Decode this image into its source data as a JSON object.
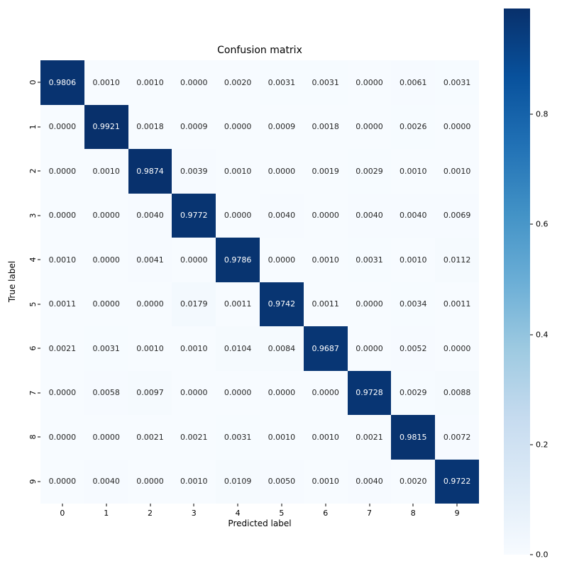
{
  "figure": {
    "background": "#ffffff"
  },
  "chart_data": {
    "type": "heatmap",
    "title": "Confusion matrix",
    "xlabel": "Predicted label",
    "ylabel": "True label",
    "x_tick_labels": [
      "0",
      "1",
      "2",
      "3",
      "4",
      "5",
      "6",
      "7",
      "8",
      "9"
    ],
    "y_tick_labels": [
      "0",
      "1",
      "2",
      "3",
      "4",
      "5",
      "6",
      "7",
      "8",
      "9"
    ],
    "matrix": [
      [
        0.9806,
        0.001,
        0.001,
        0.0,
        0.002,
        0.0031,
        0.0031,
        0.0,
        0.0061,
        0.0031
      ],
      [
        0.0,
        0.9921,
        0.0018,
        0.0009,
        0.0,
        0.0009,
        0.0018,
        0.0,
        0.0026,
        0.0
      ],
      [
        0.0,
        0.001,
        0.9874,
        0.0039,
        0.001,
        0.0,
        0.0019,
        0.0029,
        0.001,
        0.001
      ],
      [
        0.0,
        0.0,
        0.004,
        0.9772,
        0.0,
        0.004,
        0.0,
        0.004,
        0.004,
        0.0069
      ],
      [
        0.001,
        0.0,
        0.0041,
        0.0,
        0.9786,
        0.0,
        0.001,
        0.0031,
        0.001,
        0.0112
      ],
      [
        0.0011,
        0.0,
        0.0,
        0.0179,
        0.0011,
        0.9742,
        0.0011,
        0.0,
        0.0034,
        0.0011
      ],
      [
        0.0021,
        0.0031,
        0.001,
        0.001,
        0.0104,
        0.0084,
        0.9687,
        0.0,
        0.0052,
        0.0
      ],
      [
        0.0,
        0.0058,
        0.0097,
        0.0,
        0.0,
        0.0,
        0.0,
        0.9728,
        0.0029,
        0.0088
      ],
      [
        0.0,
        0.0,
        0.0021,
        0.0021,
        0.0031,
        0.001,
        0.001,
        0.0021,
        0.9815,
        0.0072
      ],
      [
        0.0,
        0.004,
        0.0,
        0.001,
        0.0109,
        0.005,
        0.001,
        0.004,
        0.002,
        0.9722
      ]
    ],
    "annotation_decimals": 4,
    "vmin": 0.0,
    "vmax": 0.9921,
    "colormap": "Blues",
    "colormap_stops": [
      [
        0.0,
        "#f7fbff"
      ],
      [
        0.125,
        "#deebf7"
      ],
      [
        0.25,
        "#c6dbef"
      ],
      [
        0.375,
        "#9ecae1"
      ],
      [
        0.5,
        "#6baed6"
      ],
      [
        0.625,
        "#4292c6"
      ],
      [
        0.75,
        "#2171b5"
      ],
      [
        0.875,
        "#08519c"
      ],
      [
        1.0,
        "#08306b"
      ]
    ],
    "annotation_text_dark": "#262626",
    "annotation_text_light": "#ffffff",
    "grid": "off",
    "legend": "colorbar-right",
    "colorbar": {
      "tick_labels": [
        "0.8",
        "0.6",
        "0.4",
        "0.2",
        "0.0"
      ],
      "tick_values": [
        0.8,
        0.6,
        0.4,
        0.2,
        0.0
      ]
    }
  }
}
